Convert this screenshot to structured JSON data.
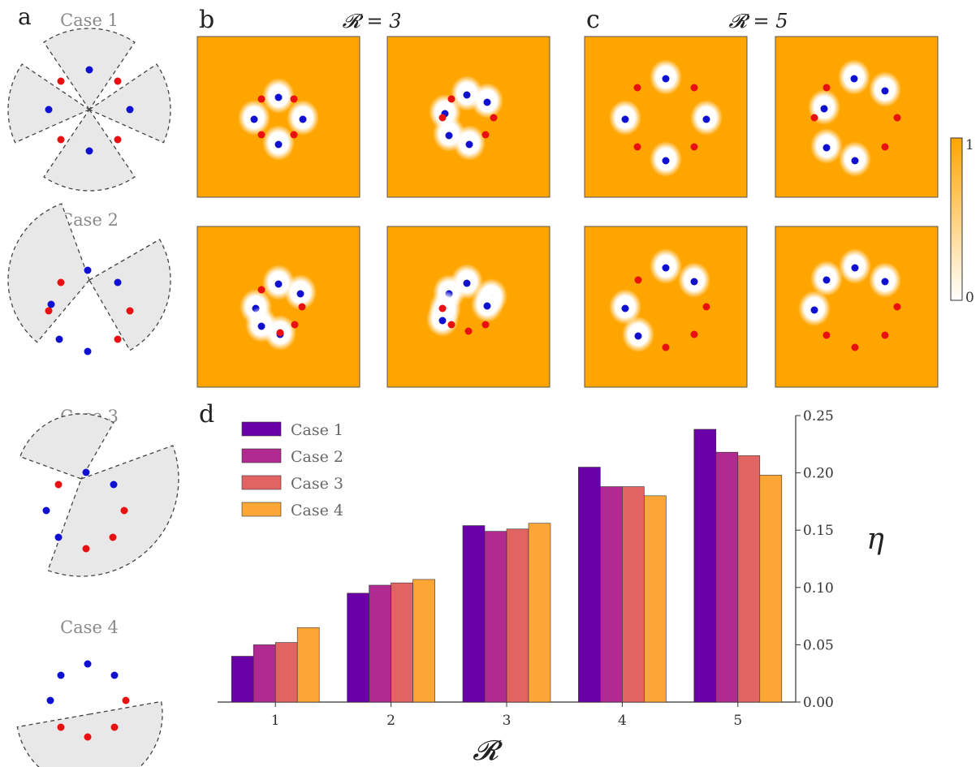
{
  "panels": {
    "a": {
      "label": "a",
      "cases": [
        "Case 1",
        "Case 2",
        "Case 3",
        "Case 4"
      ]
    },
    "b": {
      "label": "b",
      "title": "𝓡 = 3"
    },
    "c": {
      "label": "c",
      "title": "𝓡 = 5"
    },
    "d": {
      "label": "d"
    }
  },
  "colorbar": {
    "max_label": "1",
    "min_label": "0",
    "colors": [
      "#ffffff",
      "#ffa500"
    ]
  },
  "colors": {
    "blue_marker": "#1010d0",
    "red_marker": "#e81010",
    "sector_fill": "#e8e8e8",
    "field_orange": "#ffa500"
  },
  "chart_data": {
    "type": "bar",
    "categories": [
      "1",
      "2",
      "3",
      "4",
      "5"
    ],
    "series": [
      {
        "name": "Case 1",
        "color": "#6a00a8",
        "values": [
          0.04,
          0.095,
          0.154,
          0.205,
          0.238
        ]
      },
      {
        "name": "Case 2",
        "color": "#b12a90",
        "values": [
          0.05,
          0.102,
          0.149,
          0.188,
          0.218
        ]
      },
      {
        "name": "Case 3",
        "color": "#e16462",
        "values": [
          0.052,
          0.104,
          0.151,
          0.188,
          0.215
        ]
      },
      {
        "name": "Case 4",
        "color": "#fca636",
        "values": [
          0.065,
          0.107,
          0.156,
          0.18,
          0.198
        ]
      }
    ],
    "xlabel": "𝓡",
    "ylabel": "η",
    "ylim": [
      0,
      0.25
    ],
    "yticks": [
      "0.00",
      "0.05",
      "0.10",
      "0.15",
      "0.20",
      "0.25"
    ],
    "legend": "top-left",
    "grid": false
  }
}
